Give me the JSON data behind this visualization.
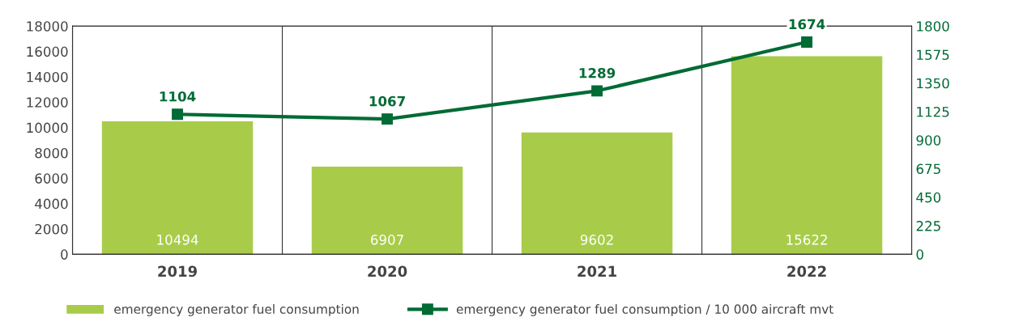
{
  "chart_data": {
    "type": "bar",
    "categories": [
      "2019",
      "2020",
      "2021",
      "2022"
    ],
    "series": [
      {
        "name": "emergency generator fuel consumption",
        "color": "#a8cc4a",
        "values": [
          10494,
          6907,
          9602,
          15622
        ]
      },
      {
        "name": "emergency generator fuel consumption / 10 000 aircraft mvt",
        "color": "#006b35",
        "type": "line",
        "axis": "y2",
        "values": [
          1104,
          1067,
          1289,
          1674
        ]
      }
    ],
    "ylim": [
      0,
      18000
    ],
    "yticks": [
      0,
      2000,
      4000,
      6000,
      8000,
      10000,
      12000,
      14000,
      16000,
      18000
    ],
    "y2lim": [
      0,
      1800
    ],
    "y2ticks": [
      0,
      225,
      450,
      675,
      900,
      1125,
      1350,
      1575,
      1800
    ],
    "data_labels": true,
    "grid": "x",
    "legend": "bottom",
    "marker": "square",
    "line_style": "solid"
  }
}
